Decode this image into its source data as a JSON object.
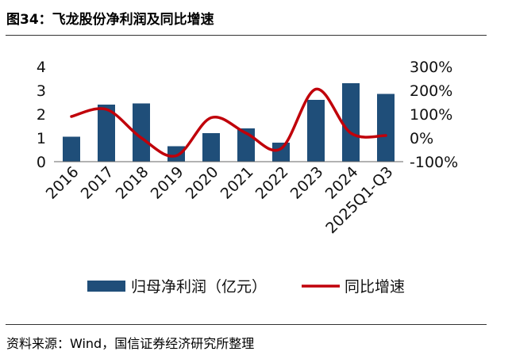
{
  "header": {
    "title": "图34：飞龙股份净利润及同比增速"
  },
  "footer": {
    "source": "资料来源：Wind，国信证券经济研究所整理"
  },
  "colors": {
    "bar": "#1F4E79",
    "line": "#C0000A",
    "text": "#111111",
    "rule": "#333333"
  },
  "chart_data": {
    "type": "bar+line",
    "title": "飞龙股份净利润及同比增速",
    "categories": [
      "2016",
      "2017",
      "2018",
      "2019",
      "2020",
      "2021",
      "2022",
      "2023",
      "2024",
      "2025Q1-Q3"
    ],
    "series": [
      {
        "name": "归母净利润（亿元）",
        "type": "bar",
        "axis": "left",
        "values": [
          1.05,
          2.4,
          2.45,
          0.65,
          1.2,
          1.4,
          0.8,
          2.6,
          3.3,
          2.85
        ]
      },
      {
        "name": "同比增速",
        "type": "line",
        "axis": "right",
        "unit": "%",
        "values": [
          90,
          120,
          0,
          -75,
          85,
          20,
          -45,
          205,
          20,
          10
        ]
      }
    ],
    "left_axis": {
      "min": 0,
      "max": 4,
      "ticks": [
        "0",
        "1",
        "2",
        "3",
        "4"
      ]
    },
    "right_axis": {
      "min": -100,
      "max": 300,
      "ticks": [
        "-100%",
        "0%",
        "100%",
        "200%",
        "300%"
      ]
    },
    "legend": [
      "归母净利润（亿元）",
      "同比增速"
    ],
    "legend_position": "bottom"
  }
}
